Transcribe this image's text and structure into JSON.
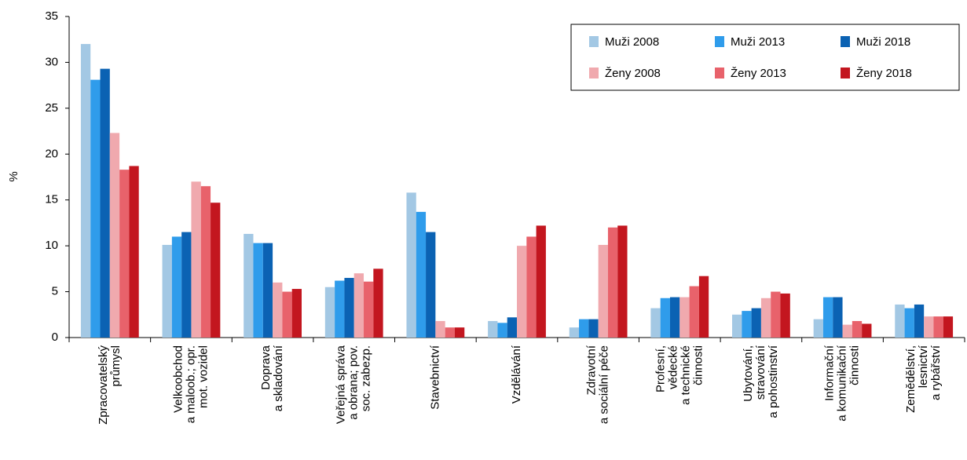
{
  "chart_data": {
    "type": "bar",
    "ylabel": "%",
    "categories": [
      "Zpracovatelský\nprůmysl",
      "Velkoobchod\na maloob.; opr.\nmot. vozidel",
      "Doprava\na skladování",
      "Veřejná správa\na obrana; pov.\nsoc. zabezp.",
      "Stavebnictví",
      "Vzdělávání",
      "Zdravotní\na sociální péče",
      "Profesní,\nvědecké\na technické\nčinnosti",
      "Ubytování,\nstravování\na pohostinství",
      "Informační\na komunikační\nčinnosti",
      "Zemědělství,\nlesnictví\na rybářství"
    ],
    "series": [
      {
        "name": "Muži 2008",
        "color": "#a3c8e4",
        "values": [
          32,
          10.1,
          11.3,
          5.5,
          15.8,
          1.8,
          1.1,
          3.2,
          2.5,
          2,
          3.6
        ]
      },
      {
        "name": "Muži 2013",
        "color": "#2f9ceb",
        "values": [
          28.1,
          11,
          10.3,
          6.2,
          13.7,
          1.6,
          2,
          4.3,
          2.9,
          4.4,
          3.2
        ]
      },
      {
        "name": "Muži 2018",
        "color": "#0b62b3",
        "values": [
          29.3,
          11.5,
          10.3,
          6.5,
          11.5,
          2.2,
          2,
          4.4,
          3.2,
          4.4,
          3.6
        ]
      },
      {
        "name": "Ženy 2008",
        "color": "#f0a9ae",
        "values": [
          22.3,
          17,
          6,
          7,
          1.8,
          10,
          10.1,
          4.4,
          4.3,
          1.4,
          2.3
        ]
      },
      {
        "name": "Ženy 2013",
        "color": "#e8626b",
        "values": [
          18.3,
          16.5,
          5,
          6.1,
          1.1,
          11,
          12,
          5.6,
          5,
          1.8,
          2.3
        ]
      },
      {
        "name": "Ženy 2018",
        "color": "#c3161f",
        "values": [
          18.7,
          14.7,
          5.3,
          7.5,
          1.1,
          12.2,
          12.2,
          6.7,
          4.8,
          1.5,
          2.3
        ]
      }
    ],
    "ylim": [
      0,
      35
    ],
    "yticks": [
      0,
      5,
      10,
      15,
      20,
      25,
      30,
      35
    ],
    "grid": false,
    "legend": "upper right"
  }
}
